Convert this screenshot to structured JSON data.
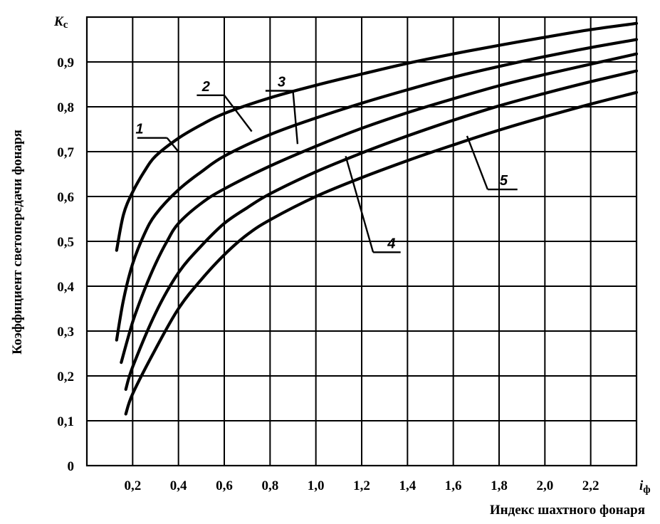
{
  "chart_data": {
    "type": "line",
    "xlabel": "Индекс шахтного фонаря",
    "ylabel": "Коэффициент светопередачи фонаря",
    "x_symbol_main": "i",
    "x_symbol_sub": "ф",
    "y_symbol_main": "K",
    "y_symbol_sub": "c",
    "xlim": [
      0,
      2.4
    ],
    "ylim": [
      0,
      1.0
    ],
    "x_ticks": [
      {
        "v": 0.2,
        "label": "0,2"
      },
      {
        "v": 0.4,
        "label": "0,4"
      },
      {
        "v": 0.6,
        "label": "0,6"
      },
      {
        "v": 0.8,
        "label": "0,8"
      },
      {
        "v": 1.0,
        "label": "1,0"
      },
      {
        "v": 1.2,
        "label": "1,2"
      },
      {
        "v": 1.4,
        "label": "1,4"
      },
      {
        "v": 1.6,
        "label": "1,6"
      },
      {
        "v": 1.8,
        "label": "1,8"
      },
      {
        "v": 2.0,
        "label": "2,0"
      },
      {
        "v": 2.2,
        "label": "2,2"
      }
    ],
    "y_ticks": [
      {
        "v": 0,
        "label": "0"
      },
      {
        "v": 0.1,
        "label": "0,1"
      },
      {
        "v": 0.2,
        "label": "0,2"
      },
      {
        "v": 0.3,
        "label": "0,3"
      },
      {
        "v": 0.4,
        "label": "0,4"
      },
      {
        "v": 0.5,
        "label": "0,5"
      },
      {
        "v": 0.6,
        "label": "0,6"
      },
      {
        "v": 0.7,
        "label": "0,7"
      },
      {
        "v": 0.8,
        "label": "0,8"
      },
      {
        "v": 0.9,
        "label": "0,9"
      }
    ],
    "grid": true,
    "series": [
      {
        "name": "1",
        "points": [
          [
            0.13,
            0.48
          ],
          [
            0.16,
            0.56
          ],
          [
            0.2,
            0.61
          ],
          [
            0.25,
            0.655
          ],
          [
            0.3,
            0.69
          ],
          [
            0.4,
            0.73
          ],
          [
            0.5,
            0.76
          ],
          [
            0.6,
            0.785
          ],
          [
            0.8,
            0.82
          ],
          [
            1.0,
            0.848
          ],
          [
            1.2,
            0.873
          ],
          [
            1.4,
            0.897
          ],
          [
            1.6,
            0.918
          ],
          [
            1.8,
            0.937
          ],
          [
            2.0,
            0.955
          ],
          [
            2.2,
            0.972
          ],
          [
            2.4,
            0.986
          ]
        ]
      },
      {
        "name": "2",
        "points": [
          [
            0.13,
            0.28
          ],
          [
            0.16,
            0.37
          ],
          [
            0.2,
            0.45
          ],
          [
            0.25,
            0.515
          ],
          [
            0.3,
            0.56
          ],
          [
            0.4,
            0.615
          ],
          [
            0.5,
            0.655
          ],
          [
            0.6,
            0.69
          ],
          [
            0.8,
            0.738
          ],
          [
            1.0,
            0.775
          ],
          [
            1.2,
            0.808
          ],
          [
            1.4,
            0.838
          ],
          [
            1.6,
            0.866
          ],
          [
            1.8,
            0.89
          ],
          [
            2.0,
            0.912
          ],
          [
            2.2,
            0.932
          ],
          [
            2.4,
            0.95
          ]
        ]
      },
      {
        "name": "3",
        "points": [
          [
            0.15,
            0.23
          ],
          [
            0.2,
            0.32
          ],
          [
            0.25,
            0.39
          ],
          [
            0.3,
            0.45
          ],
          [
            0.35,
            0.5
          ],
          [
            0.4,
            0.54
          ],
          [
            0.5,
            0.585
          ],
          [
            0.6,
            0.617
          ],
          [
            0.8,
            0.668
          ],
          [
            1.0,
            0.712
          ],
          [
            1.2,
            0.752
          ],
          [
            1.4,
            0.787
          ],
          [
            1.6,
            0.818
          ],
          [
            1.8,
            0.847
          ],
          [
            2.0,
            0.872
          ],
          [
            2.2,
            0.895
          ],
          [
            2.4,
            0.918
          ]
        ]
      },
      {
        "name": "4",
        "points": [
          [
            0.17,
            0.17
          ],
          [
            0.2,
            0.22
          ],
          [
            0.3,
            0.34
          ],
          [
            0.4,
            0.43
          ],
          [
            0.5,
            0.49
          ],
          [
            0.6,
            0.54
          ],
          [
            0.7,
            0.575
          ],
          [
            0.8,
            0.606
          ],
          [
            1.0,
            0.655
          ],
          [
            1.2,
            0.697
          ],
          [
            1.4,
            0.735
          ],
          [
            1.6,
            0.77
          ],
          [
            1.8,
            0.802
          ],
          [
            2.0,
            0.83
          ],
          [
            2.2,
            0.856
          ],
          [
            2.4,
            0.88
          ]
        ]
      },
      {
        "name": "5",
        "points": [
          [
            0.17,
            0.115
          ],
          [
            0.2,
            0.16
          ],
          [
            0.3,
            0.26
          ],
          [
            0.4,
            0.35
          ],
          [
            0.5,
            0.415
          ],
          [
            0.6,
            0.47
          ],
          [
            0.7,
            0.515
          ],
          [
            0.8,
            0.548
          ],
          [
            1.0,
            0.6
          ],
          [
            1.2,
            0.642
          ],
          [
            1.4,
            0.68
          ],
          [
            1.6,
            0.715
          ],
          [
            1.8,
            0.748
          ],
          [
            2.0,
            0.778
          ],
          [
            2.2,
            0.806
          ],
          [
            2.4,
            0.832
          ]
        ]
      }
    ],
    "labels": [
      {
        "text": "1",
        "lx": 0.23,
        "ly": 0.745,
        "hx0": 0.22,
        "hx1": 0.35,
        "tx": 0.4,
        "ty": 0.7
      },
      {
        "text": "2",
        "lx": 0.52,
        "ly": 0.84,
        "hx0": 0.48,
        "hx1": 0.6,
        "tx": 0.72,
        "ty": 0.745
      },
      {
        "text": "3",
        "lx": 0.85,
        "ly": 0.85,
        "hx0": 0.78,
        "hx1": 0.9,
        "tx": 0.92,
        "ty": 0.717
      },
      {
        "text": "4",
        "lx": 1.33,
        "ly": 0.49,
        "hx0": 1.25,
        "hx1": 1.37,
        "tx": 1.13,
        "ty": 0.69
      },
      {
        "text": "5",
        "lx": 1.82,
        "ly": 0.63,
        "hx0": 1.75,
        "hx1": 1.88,
        "tx": 1.66,
        "ty": 0.735
      }
    ]
  }
}
